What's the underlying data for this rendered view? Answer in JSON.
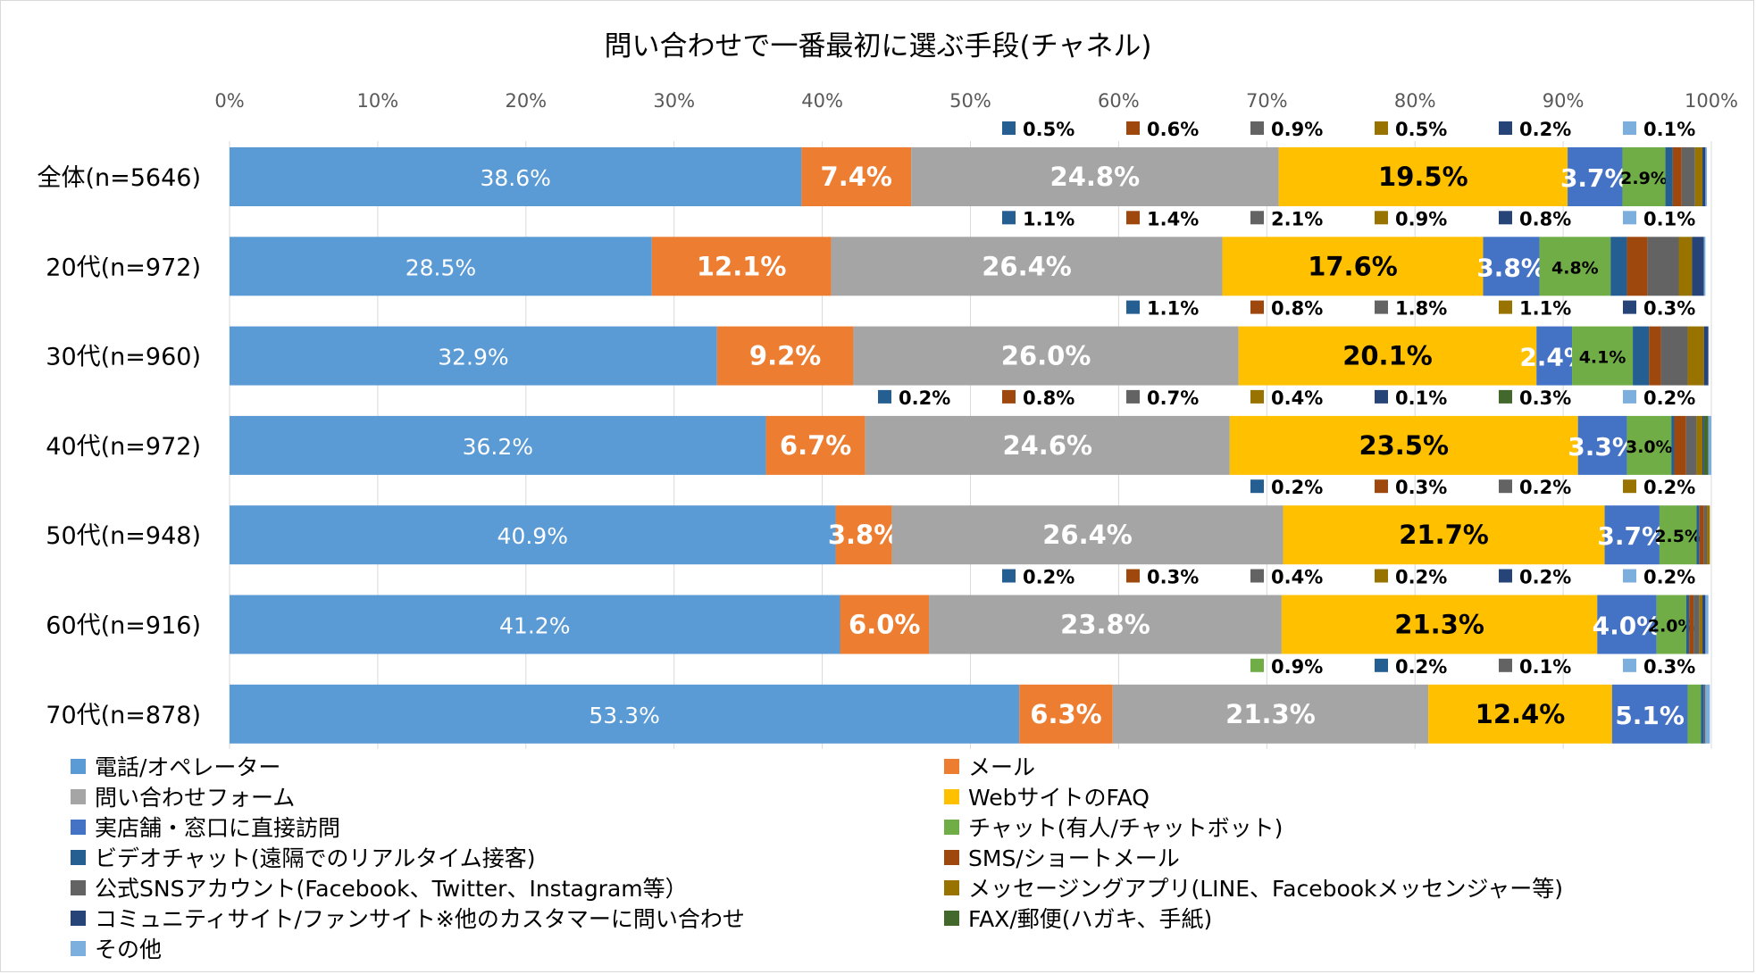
{
  "chart_data": {
    "type": "bar",
    "stacked": true,
    "orientation": "horizontal",
    "title": "問い合わせで一番最初に選ぶ手段(チャネル)",
    "xlim": [
      0,
      100
    ],
    "x_ticks": [
      "0%",
      "10%",
      "20%",
      "30%",
      "40%",
      "50%",
      "60%",
      "70%",
      "80%",
      "90%",
      "100%"
    ],
    "gridlines": true,
    "legend_position": "bottom",
    "categories": [
      "全体(n=5646)",
      "20代(n=972)",
      "30代(n=960)",
      "40代(n=972)",
      "50代(n=948)",
      "60代(n=916)",
      "70代(n=878)"
    ],
    "series": [
      {
        "name": "電話/オペレーター",
        "color": "#5B9BD5",
        "values": [
          38.6,
          28.5,
          32.9,
          36.2,
          40.9,
          41.2,
          53.3
        ],
        "labels": [
          "38.6%",
          "28.5%",
          "32.9%",
          "36.2%",
          "40.9%",
          "41.2%",
          "53.3%"
        ]
      },
      {
        "name": "メール",
        "color": "#ED7D31",
        "values": [
          7.4,
          12.1,
          9.2,
          6.7,
          3.8,
          6.0,
          6.3
        ],
        "labels": [
          "7.4%",
          "12.1%",
          "9.2%",
          "6.7%",
          "3.8%",
          "6.0%",
          "6.3%"
        ]
      },
      {
        "name": "問い合わせフォーム",
        "color": "#A5A5A5",
        "values": [
          24.8,
          26.4,
          26.0,
          24.6,
          26.4,
          23.8,
          21.3
        ],
        "labels": [
          "24.8%",
          "26.4%",
          "26.0%",
          "24.6%",
          "26.4%",
          "23.8%",
          "21.3%"
        ]
      },
      {
        "name": "WebサイトのFAQ",
        "color": "#FFC000",
        "values": [
          19.5,
          17.6,
          20.1,
          23.5,
          21.7,
          21.3,
          12.4
        ],
        "labels": [
          "19.5%",
          "17.6%",
          "20.1%",
          "23.5%",
          "21.7%",
          "21.3%",
          "12.4%"
        ]
      },
      {
        "name": "実店舗・窓口に直接訪問",
        "color": "#4472C4",
        "values": [
          3.7,
          3.8,
          2.4,
          3.3,
          3.7,
          4.0,
          5.1
        ],
        "labels": [
          "3.7%",
          "3.8%",
          "2.4%",
          "3.3%",
          "3.7%",
          "4.0%",
          "5.1%"
        ]
      },
      {
        "name": "チャット(有人/チャットボット)",
        "color": "#70AD47",
        "values": [
          2.9,
          4.8,
          4.1,
          3.0,
          2.5,
          2.0,
          0.9
        ],
        "labels": [
          "2.9%",
          "4.8%",
          "4.1%",
          "3.0%",
          "2.5%",
          "2.0%",
          "0.9%"
        ]
      },
      {
        "name": "ビデオチャット(遠隔でのリアルタイム接客)",
        "color": "#255E91",
        "values": [
          0.5,
          1.1,
          1.1,
          0.2,
          0.2,
          0.2,
          0.2
        ],
        "labels": [
          "0.5%",
          "1.1%",
          "1.1%",
          "0.2%",
          "0.2%",
          "0.2%",
          "0.2%"
        ]
      },
      {
        "name": "SMS/ショートメール",
        "color": "#9E480E",
        "values": [
          0.6,
          1.4,
          0.8,
          0.8,
          0.3,
          0.3,
          0.0
        ],
        "labels": [
          "0.6%",
          "1.4%",
          "0.8%",
          "0.8%",
          "0.3%",
          "0.3%",
          ""
        ]
      },
      {
        "name": "公式SNSアカウント(Facebook、Twitter、Instagram等）",
        "color": "#636363",
        "values": [
          0.9,
          2.1,
          1.8,
          0.7,
          0.2,
          0.4,
          0.1
        ],
        "labels": [
          "0.9%",
          "2.1%",
          "1.8%",
          "0.7%",
          "0.2%",
          "0.4%",
          "0.1%"
        ]
      },
      {
        "name": "メッセージングアプリ(LINE、Facebookメッセンジャー等)",
        "color": "#997300",
        "values": [
          0.5,
          0.9,
          1.1,
          0.4,
          0.2,
          0.2,
          0.0
        ],
        "labels": [
          "0.5%",
          "0.9%",
          "1.1%",
          "0.4%",
          "0.2%",
          "0.2%",
          ""
        ]
      },
      {
        "name": "コミュニティサイト/ファンサイト※他のカスタマーに問い合わせ",
        "color": "#264478",
        "values": [
          0.2,
          0.8,
          0.3,
          0.1,
          0.0,
          0.2,
          0.0
        ],
        "labels": [
          "0.2%",
          "0.8%",
          "0.3%",
          "0.1%",
          "",
          "0.2%",
          ""
        ]
      },
      {
        "name": "FAX/郵便(ハガキ、手紙)",
        "color": "#43682B",
        "values": [
          0.0,
          0.0,
          0.0,
          0.3,
          0.0,
          0.0,
          0.0
        ],
        "labels": [
          "",
          "",
          "",
          "0.3%",
          "",
          "",
          ""
        ]
      },
      {
        "name": "その他",
        "color": "#7CAFDD",
        "values": [
          0.1,
          0.1,
          0.0,
          0.2,
          0.0,
          0.2,
          0.3
        ],
        "labels": [
          "0.1%",
          "0.1%",
          "",
          "0.2%",
          "",
          "0.2%",
          "0.3%"
        ]
      }
    ]
  }
}
